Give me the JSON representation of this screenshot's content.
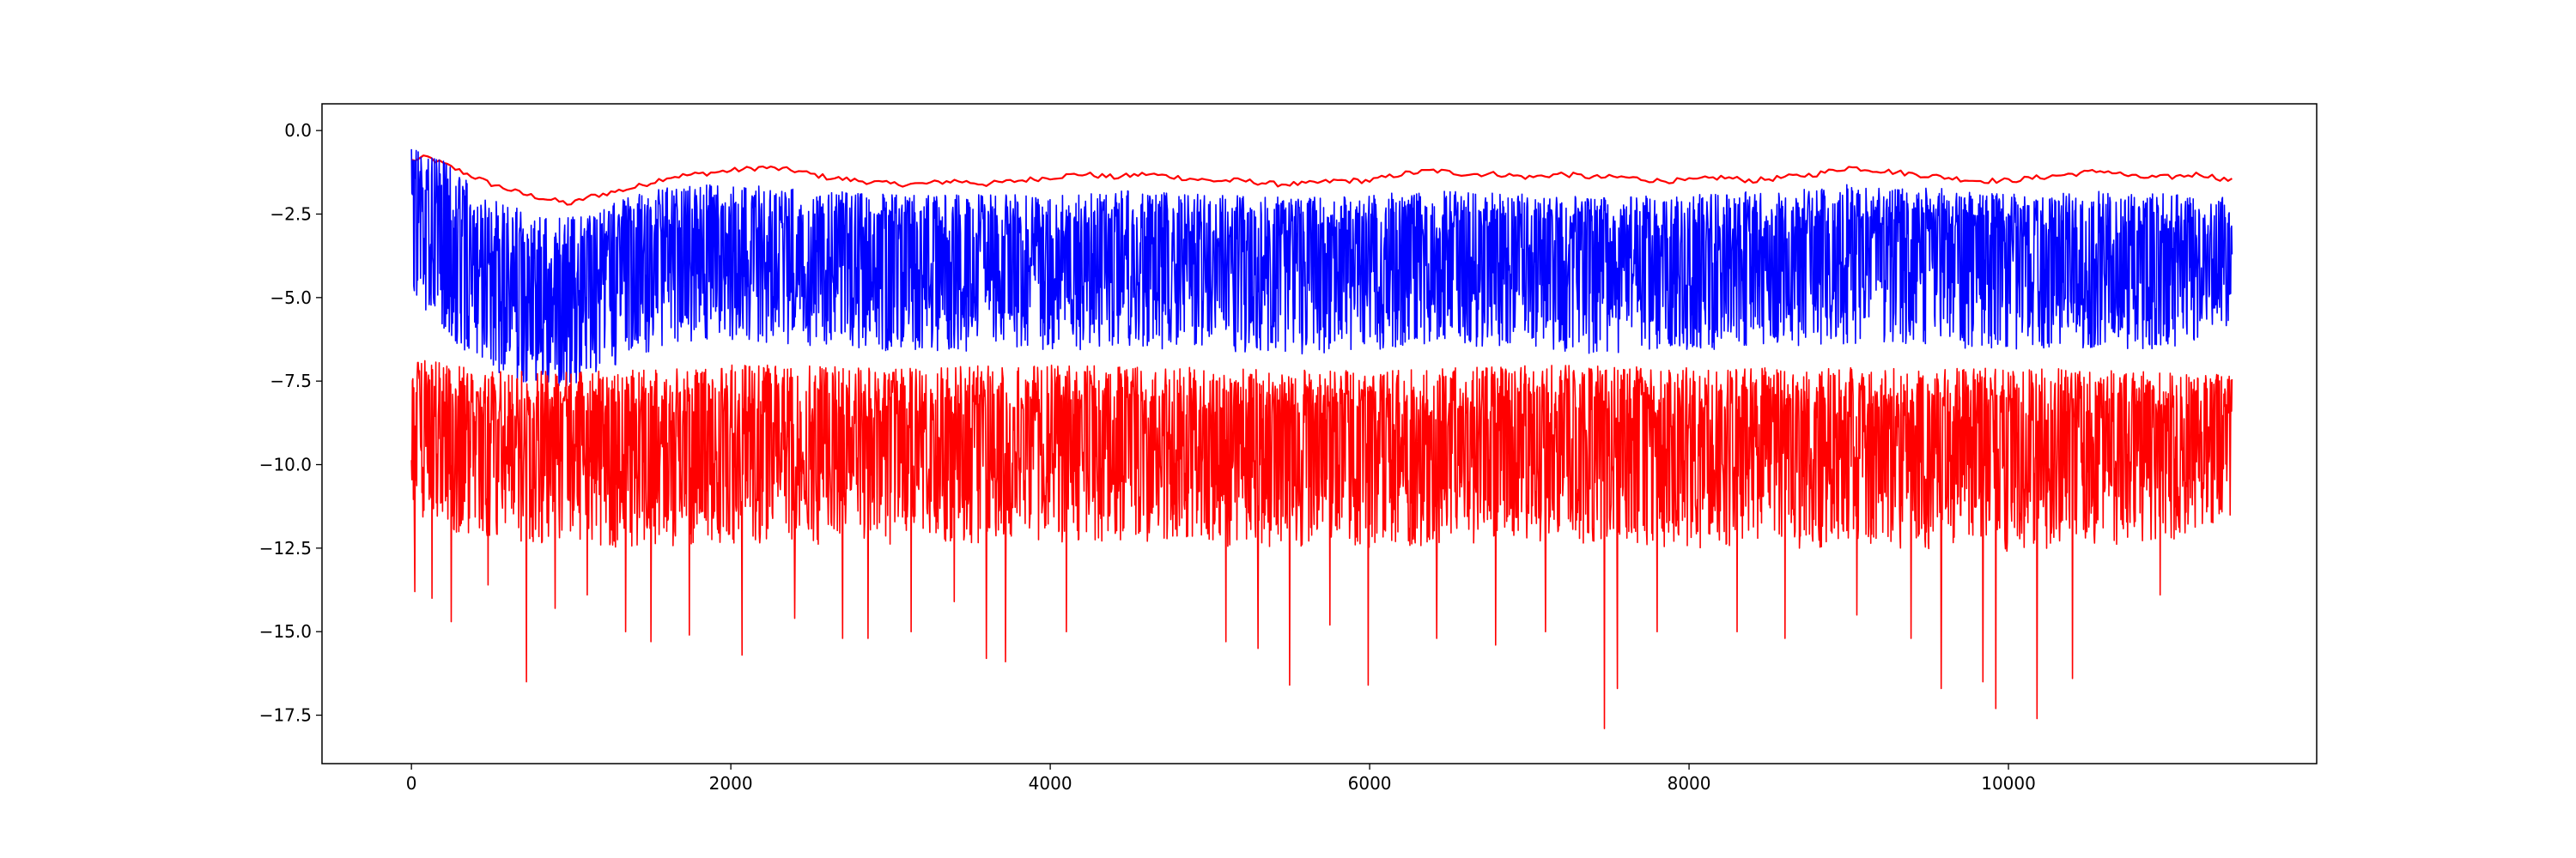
{
  "chart_data": {
    "type": "line",
    "title": "",
    "xlabel": "",
    "ylabel": "",
    "xlim": [
      -560,
      11930
    ],
    "ylim": [
      -18.95,
      0.8
    ],
    "x_ticks": [
      0,
      2000,
      4000,
      6000,
      8000,
      10000
    ],
    "x_tick_labels": [
      "0",
      "2000",
      "4000",
      "6000",
      "8000",
      "10000"
    ],
    "y_ticks": [
      0.0,
      -2.5,
      -5.0,
      -7.5,
      -10.0,
      -12.5,
      -15.0,
      -17.5
    ],
    "y_tick_labels": [
      "0.0",
      "−2.5",
      "−5.0",
      "−7.5",
      "−10.0",
      "−12.5",
      "−15.0",
      "−17.5"
    ],
    "grid": false,
    "x_max": 11400,
    "series": [
      {
        "color": "#ff0000",
        "style": "smooth",
        "x": [
          0,
          100,
          300,
          500,
          700,
          900,
          1000,
          1100,
          1200,
          1400,
          1600,
          1800,
          2000,
          2200,
          2400,
          2600,
          2800,
          3000,
          3200,
          3400,
          3600,
          3800,
          4000,
          4200,
          4400,
          4600,
          4800,
          5000,
          5200,
          5400,
          5600,
          5800,
          6000,
          6200,
          6400,
          6600,
          6800,
          7000,
          7200,
          7400,
          7600,
          7800,
          8000,
          8200,
          8400,
          8600,
          8800,
          9000,
          9200,
          9400,
          9600,
          9800,
          10000,
          10200,
          10400,
          10600,
          10800,
          11000,
          11200,
          11400
        ],
        "y": [
          -0.9,
          -0.8,
          -1.2,
          -1.6,
          -1.9,
          -2.1,
          -2.2,
          -2.0,
          -1.9,
          -1.7,
          -1.4,
          -1.3,
          -1.2,
          -1.1,
          -1.2,
          -1.4,
          -1.5,
          -1.6,
          -1.6,
          -1.5,
          -1.6,
          -1.5,
          -1.4,
          -1.3,
          -1.4,
          -1.3,
          -1.4,
          -1.5,
          -1.5,
          -1.6,
          -1.6,
          -1.5,
          -1.5,
          -1.3,
          -1.2,
          -1.3,
          -1.3,
          -1.4,
          -1.3,
          -1.4,
          -1.4,
          -1.5,
          -1.5,
          -1.4,
          -1.5,
          -1.4,
          -1.3,
          -1.1,
          -1.2,
          -1.3,
          -1.4,
          -1.5,
          -1.5,
          -1.4,
          -1.3,
          -1.2,
          -1.4,
          -1.4,
          -1.3,
          -1.5
        ]
      },
      {
        "color": "#0000ff",
        "style": "noisy",
        "x": [
          0,
          150,
          300,
          500,
          700,
          900,
          1100,
          1300,
          1500,
          1700,
          1900,
          2100,
          2300,
          2600,
          3000,
          3500,
          4000,
          4500,
          5000,
          5500,
          6000,
          6500,
          7000,
          7500,
          8000,
          8500,
          9000,
          9500,
          10000,
          10500,
          11000,
          11400
        ],
        "center": [
          -2.8,
          -3.0,
          -3.6,
          -4.2,
          -4.6,
          -4.8,
          -4.6,
          -4.2,
          -3.8,
          -3.6,
          -3.5,
          -3.5,
          -3.6,
          -3.7,
          -3.8,
          -3.8,
          -3.8,
          -3.7,
          -3.8,
          -3.9,
          -3.8,
          -3.7,
          -3.8,
          -3.9,
          -3.8,
          -3.7,
          -3.5,
          -3.6,
          -3.8,
          -3.7,
          -3.8,
          -3.6
        ],
        "upper": [
          -0.5,
          -0.7,
          -1.3,
          -2.0,
          -2.4,
          -2.6,
          -2.5,
          -2.1,
          -1.8,
          -1.6,
          -1.6,
          -1.6,
          -1.7,
          -1.8,
          -1.9,
          -1.9,
          -1.9,
          -1.8,
          -1.9,
          -2.0,
          -1.9,
          -1.8,
          -1.9,
          -2.0,
          -1.9,
          -1.8,
          -1.6,
          -1.7,
          -1.9,
          -1.8,
          -1.9,
          -2.0
        ],
        "lower": [
          -5.2,
          -5.8,
          -6.6,
          -7.2,
          -7.6,
          -7.8,
          -7.6,
          -7.0,
          -6.6,
          -6.4,
          -6.3,
          -6.3,
          -6.4,
          -6.5,
          -6.6,
          -6.6,
          -6.6,
          -6.5,
          -6.6,
          -6.7,
          -6.6,
          -6.5,
          -6.6,
          -6.7,
          -6.6,
          -6.5,
          -6.4,
          -6.5,
          -6.6,
          -6.5,
          -6.6,
          -5.8
        ]
      },
      {
        "color": "#ff0000",
        "style": "noisy",
        "x": [
          0,
          500,
          1000,
          2000,
          3000,
          4000,
          5000,
          6000,
          7000,
          8000,
          9000,
          10000,
          11000,
          11400
        ],
        "center": [
          -8.8,
          -9.2,
          -9.3,
          -9.3,
          -9.3,
          -9.2,
          -9.3,
          -9.3,
          -9.2,
          -9.3,
          -9.3,
          -9.3,
          -9.3,
          -9.2
        ],
        "upper": [
          -6.8,
          -7.2,
          -7.2,
          -7.0,
          -7.1,
          -7.0,
          -7.1,
          -7.2,
          -7.0,
          -7.1,
          -7.1,
          -7.1,
          -7.2,
          -7.3
        ],
        "lower": [
          -11.8,
          -12.2,
          -12.5,
          -12.4,
          -12.4,
          -12.3,
          -12.5,
          -12.5,
          -12.3,
          -12.5,
          -12.5,
          -12.6,
          -12.3,
          -11.5
        ],
        "spikes": [
          [
            20,
            -13.8
          ],
          [
            130,
            -14.0
          ],
          [
            250,
            -14.7
          ],
          [
            480,
            -13.6
          ],
          [
            720,
            -16.5
          ],
          [
            900,
            -14.3
          ],
          [
            1100,
            -13.9
          ],
          [
            1340,
            -15.0
          ],
          [
            1500,
            -15.3
          ],
          [
            1740,
            -15.1
          ],
          [
            2070,
            -15.7
          ],
          [
            2400,
            -14.6
          ],
          [
            2700,
            -15.2
          ],
          [
            2860,
            -15.2
          ],
          [
            3130,
            -15.0
          ],
          [
            3400,
            -14.1
          ],
          [
            3600,
            -15.8
          ],
          [
            3720,
            -15.9
          ],
          [
            4100,
            -15.0
          ],
          [
            5100,
            -15.3
          ],
          [
            5300,
            -15.5
          ],
          [
            5500,
            -16.6
          ],
          [
            5750,
            -14.8
          ],
          [
            5990,
            -16.6
          ],
          [
            6420,
            -15.2
          ],
          [
            6790,
            -15.4
          ],
          [
            7100,
            -15.0
          ],
          [
            7470,
            -17.9
          ],
          [
            7550,
            -16.7
          ],
          [
            7800,
            -15.0
          ],
          [
            8300,
            -15.0
          ],
          [
            8600,
            -15.2
          ],
          [
            9050,
            -14.5
          ],
          [
            9390,
            -15.2
          ],
          [
            9580,
            -16.7
          ],
          [
            9840,
            -16.5
          ],
          [
            9920,
            -17.3
          ],
          [
            10180,
            -17.6
          ],
          [
            10400,
            -16.4
          ],
          [
            10950,
            -13.9
          ]
        ]
      }
    ]
  }
}
